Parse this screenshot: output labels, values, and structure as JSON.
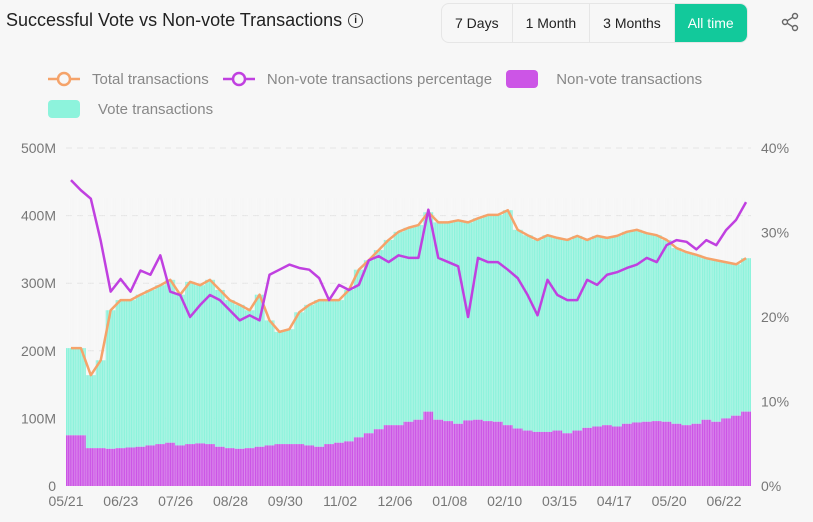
{
  "header": {
    "title": "Successful Vote vs Non-vote Transactions",
    "info_icon": "info-icon",
    "share_icon": "share-icon"
  },
  "range_buttons": [
    {
      "label": "7 Days",
      "active": false
    },
    {
      "label": "1 Month",
      "active": false
    },
    {
      "label": "3 Months",
      "active": false
    },
    {
      "label": "All time",
      "active": true
    }
  ],
  "colors": {
    "accent": "#12c99b",
    "total": "#f5a36a",
    "pct": "#c040e0",
    "nonvote": "#cc55e6",
    "vote": "#8df3dc"
  },
  "chart_data": {
    "type": "bar+line",
    "legend_position": "top-left",
    "legend": [
      "Total transactions",
      "Non-vote transactions percentage",
      "Non-vote transactions",
      "Vote transactions"
    ],
    "y_left": {
      "ticks": [
        "0",
        "100M",
        "200M",
        "300M",
        "400M",
        "500M"
      ],
      "range": [
        0,
        500
      ],
      "unit": "M"
    },
    "y_right": {
      "ticks": [
        "0%",
        "10%",
        "20%",
        "30%",
        "40%"
      ],
      "range": [
        0,
        40
      ],
      "unit": "%"
    },
    "x_ticks": [
      "05/21",
      "06/23",
      "07/26",
      "08/28",
      "09/30",
      "11/02",
      "12/06",
      "01/08",
      "02/10",
      "03/15",
      "04/17",
      "05/20",
      "06/22"
    ],
    "grid": "horizontal dashed",
    "x": [
      "05/21",
      "05/27",
      "06/02",
      "06/08",
      "06/14",
      "06/20",
      "06/26",
      "07/02",
      "07/08",
      "07/14",
      "07/20",
      "07/26",
      "08/01",
      "08/07",
      "08/13",
      "08/19",
      "08/25",
      "08/31",
      "09/06",
      "09/12",
      "09/18",
      "09/24",
      "09/30",
      "10/06",
      "10/12",
      "10/18",
      "10/24",
      "10/30",
      "11/05",
      "11/11",
      "11/17",
      "11/23",
      "11/29",
      "12/05",
      "12/11",
      "12/17",
      "12/23",
      "12/29",
      "01/04",
      "01/10",
      "01/16",
      "01/22",
      "01/28",
      "02/03",
      "02/09",
      "02/15",
      "02/21",
      "02/27",
      "03/05",
      "03/11",
      "03/17",
      "03/23",
      "03/29",
      "04/04",
      "04/10",
      "04/16",
      "04/22",
      "04/28",
      "05/04",
      "05/10",
      "05/16",
      "05/22",
      "05/28",
      "06/03",
      "06/09",
      "06/15",
      "06/21",
      "06/27",
      "07/03"
    ],
    "series": [
      {
        "name": "Total transactions",
        "type": "line",
        "axis": "left",
        "values": [
          204,
          204,
          164,
          186,
          260,
          275,
          275,
          283,
          290,
          297,
          305,
          283,
          302,
          297,
          305,
          290,
          275,
          268,
          260,
          283,
          245,
          228,
          232,
          257,
          268,
          275,
          275,
          275,
          290,
          320,
          334,
          349,
          364,
          376,
          382,
          386,
          405,
          390,
          390,
          393,
          390,
          396,
          401,
          401,
          408,
          379,
          371,
          364,
          371,
          367,
          364,
          370,
          364,
          370,
          367,
          370,
          376,
          379,
          374,
          371,
          364,
          352,
          346,
          342,
          337,
          334,
          331,
          328,
          337
        ]
      },
      {
        "name": "Non-vote transactions percentage",
        "type": "line",
        "axis": "right",
        "values": [
          36.2,
          35,
          34,
          29,
          23,
          24.5,
          23,
          25.5,
          25,
          27.3,
          23,
          22.6,
          20,
          21.4,
          22.6,
          22,
          20.8,
          19.6,
          20.2,
          19.6,
          25,
          25.6,
          26.2,
          25.8,
          25.6,
          24.6,
          22,
          23.8,
          23.2,
          23.8,
          26.7,
          27.2,
          26.5,
          27.3,
          27,
          27,
          32.7,
          27,
          26.5,
          26,
          20,
          27,
          26.5,
          26.5,
          25.6,
          24.6,
          22.6,
          20.2,
          24.4,
          22.6,
          22,
          22,
          24.4,
          23.8,
          25,
          25.3,
          25.8,
          26.2,
          27,
          26.5,
          28.5,
          29.1,
          28.9,
          28,
          29.1,
          28.5,
          30.3,
          31.5,
          33.6
        ]
      },
      {
        "name": "Non-vote transactions",
        "type": "bar",
        "axis": "left",
        "values": [
          75,
          75,
          56,
          56,
          55,
          56,
          57,
          58,
          60,
          62,
          64,
          60,
          62,
          63,
          62,
          58,
          56,
          55,
          56,
          58,
          60,
          62,
          62,
          62,
          60,
          58,
          62,
          64,
          66,
          72,
          78,
          84,
          90,
          90,
          95,
          98,
          110,
          98,
          96,
          92,
          97,
          98,
          96,
          95,
          90,
          85,
          82,
          80,
          80,
          82,
          78,
          82,
          86,
          88,
          90,
          88,
          92,
          94,
          95,
          96,
          95,
          92,
          90,
          92,
          98,
          95,
          100,
          104,
          110
        ]
      }
    ]
  }
}
